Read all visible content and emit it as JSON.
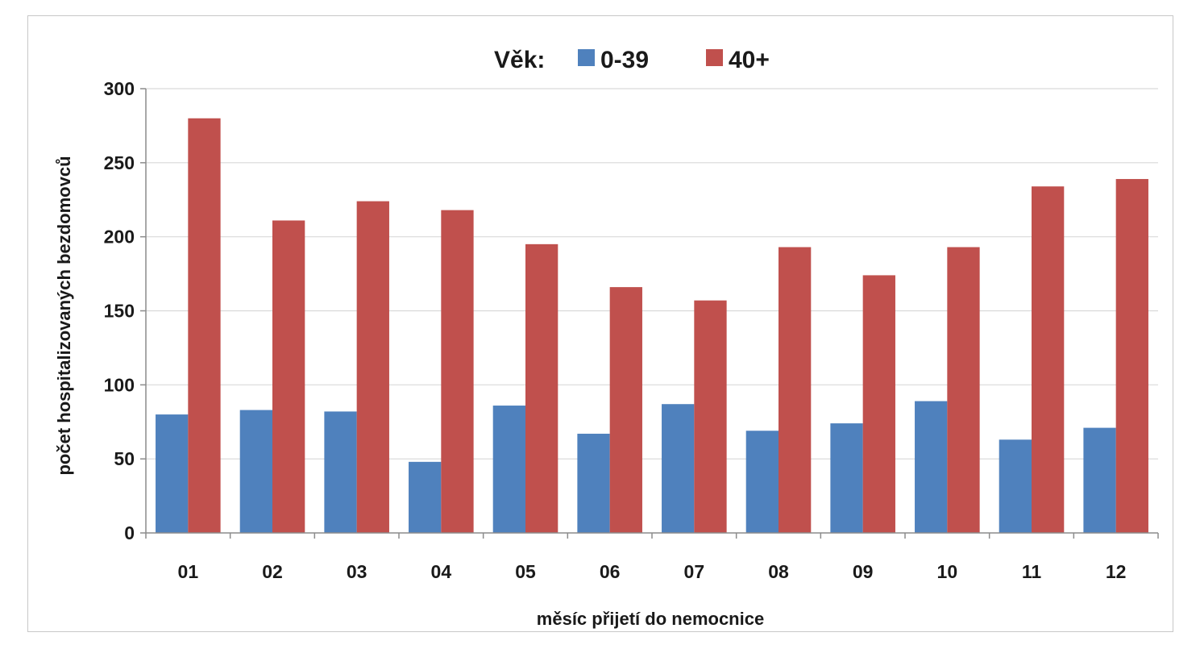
{
  "chart_data": {
    "type": "bar",
    "legend_title": "Věk:",
    "legend_position": "top",
    "categories": [
      "01",
      "02",
      "03",
      "04",
      "05",
      "06",
      "07",
      "08",
      "09",
      "10",
      "11",
      "12"
    ],
    "series": [
      {
        "name": "0-39",
        "color": "#4f81bd",
        "values": [
          80,
          83,
          82,
          48,
          86,
          67,
          87,
          69,
          74,
          89,
          63,
          71
        ]
      },
      {
        "name": "40+",
        "color": "#c0504d",
        "values": [
          280,
          211,
          224,
          218,
          195,
          166,
          157,
          193,
          174,
          193,
          234,
          239
        ]
      }
    ],
    "xlabel": "měsíc přijetí do nemocnice",
    "ylabel": "počet hospitalizovaných bezdomovců",
    "ylim": [
      0,
      300
    ],
    "yticks": [
      "0",
      "50",
      "100",
      "150",
      "200",
      "250",
      "300"
    ],
    "grid": true
  }
}
